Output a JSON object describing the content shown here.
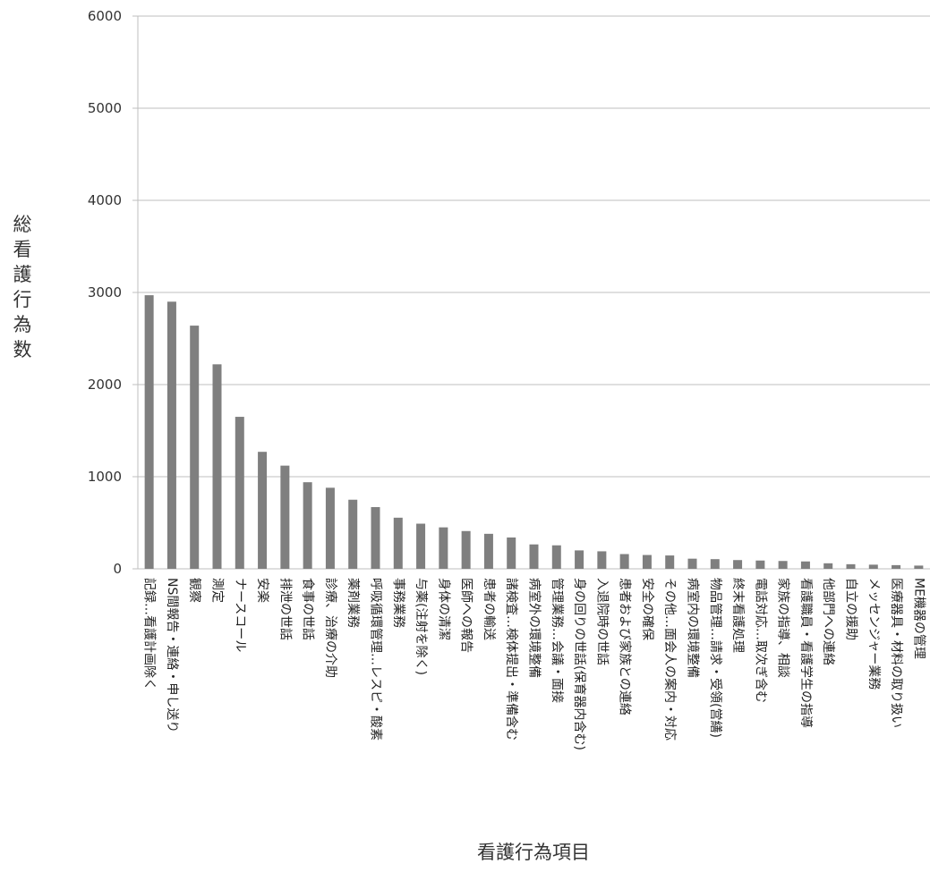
{
  "chart_data": {
    "type": "bar",
    "title": "",
    "xlabel": "看護行為項目",
    "ylabel": "総看護行為数",
    "ylim": [
      0,
      6000
    ],
    "yticks": [
      0,
      1000,
      2000,
      3000,
      4000,
      5000,
      6000
    ],
    "grid": true,
    "legend": "none",
    "bar_color": "#7f7f7f",
    "categories": [
      "記録…看護計画除く",
      "NS間報告・連絡・申し送り",
      "観察",
      "測定",
      "ナースコール",
      "安楽",
      "排泄の世話",
      "食事の世話",
      "診療、治療の介助",
      "薬剤業務",
      "呼吸循環管理…レスピ・酸素",
      "事務業務",
      "与薬(注射を除く)",
      "身体の清潔",
      "医師への報告",
      "患者の輸送",
      "諸検査…検体提出・準備含む",
      "病室外の環境整備",
      "管理業務…会議・面接",
      "身の回りの世話(保育器内含む)",
      "入退院時の世話",
      "患者および家族との連絡",
      "安全の確保",
      "その他…面会人の案内・対応",
      "病室内の環境整備",
      "物品管理…請求・受領(営繕)",
      "終末看護処理",
      "電話対応…取次ぎ含む",
      "家族の指導、相談",
      "看護職員・看護学生の指導",
      "他部門への連絡",
      "自立の援助",
      "メッセンジャー業務",
      "医療器具・材料の取り扱い",
      "ME機器の管理"
    ],
    "values": [
      2970,
      2900,
      2640,
      2220,
      1650,
      1270,
      1120,
      940,
      880,
      750,
      670,
      555,
      490,
      450,
      410,
      380,
      340,
      265,
      255,
      200,
      190,
      160,
      150,
      145,
      110,
      105,
      95,
      90,
      85,
      80,
      60,
      50,
      45,
      40,
      35
    ]
  }
}
